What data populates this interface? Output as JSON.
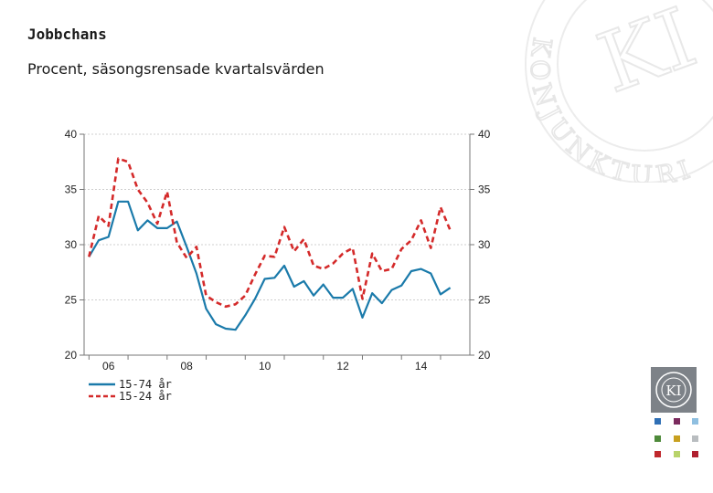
{
  "header": {
    "title": "Jobbchans",
    "subtitle": "Procent, säsongsrensade kvartalsvärden"
  },
  "branding": {
    "watermark_text": "KONJUNKTURINSTITUTET",
    "logo_text": "KI",
    "swatch_colors": [
      "#2f6fb5",
      "#7b2a5e",
      "#8fbfe0",
      "#4e8a3a",
      "#c8a020",
      "#b9bdc0",
      "#c0282d",
      "#b8d36a",
      "#b02030"
    ]
  },
  "chart_data": {
    "type": "line",
    "title": "Jobbchans",
    "subtitle": "Procent, säsongsrensade kvartalsvärden",
    "ylim": [
      20,
      40
    ],
    "yticks_left": [
      "20",
      "25",
      "30",
      "35",
      "40"
    ],
    "yticks_right": [
      "20",
      "25",
      "30",
      "35",
      "40"
    ],
    "xticks": [
      {
        "label": "06",
        "x": 2006.5
      },
      {
        "label": "08",
        "x": 2008.5
      },
      {
        "label": "10",
        "x": 2010.5
      },
      {
        "label": "12",
        "x": 2012.5
      },
      {
        "label": "14",
        "x": 2014.5
      }
    ],
    "xlim": [
      2005.875,
      2015.75
    ],
    "grid": true,
    "legend_position": "bottom-left",
    "x": [
      2006.0,
      2006.25,
      2006.5,
      2006.75,
      2007.0,
      2007.25,
      2007.5,
      2007.75,
      2008.0,
      2008.25,
      2008.5,
      2008.75,
      2009.0,
      2009.25,
      2009.5,
      2009.75,
      2010.0,
      2010.25,
      2010.5,
      2010.75,
      2011.0,
      2011.25,
      2011.5,
      2011.75,
      2012.0,
      2012.25,
      2012.5,
      2012.75,
      2013.0,
      2013.25,
      2013.5,
      2013.75,
      2014.0,
      2014.25,
      2014.5,
      2014.75,
      2015.0,
      2015.25
    ],
    "series": [
      {
        "name": "15-74 år",
        "color": "#1a7aaa",
        "dash": "solid",
        "values": [
          28.9,
          30.4,
          30.7,
          33.9,
          33.9,
          31.3,
          32.2,
          31.5,
          31.5,
          32.1,
          29.8,
          27.4,
          24.2,
          22.8,
          22.4,
          22.3,
          23.6,
          25.1,
          26.9,
          27.0,
          28.1,
          26.2,
          26.7,
          25.4,
          26.4,
          25.2,
          25.2,
          26.0,
          23.4,
          25.6,
          24.7,
          25.9,
          26.3,
          27.6,
          27.8,
          27.4,
          25.5,
          26.1
        ]
      },
      {
        "name": "15-24 år",
        "color": "#d42a2a",
        "dash": "dashed",
        "values": [
          28.9,
          32.6,
          31.7,
          37.8,
          37.5,
          35.0,
          33.8,
          31.9,
          34.8,
          30.2,
          28.8,
          29.8,
          25.4,
          24.8,
          24.4,
          24.6,
          25.4,
          27.3,
          29.0,
          28.9,
          31.6,
          29.4,
          30.5,
          28.1,
          27.8,
          28.3,
          29.2,
          29.7,
          25.1,
          29.2,
          27.6,
          27.8,
          29.6,
          30.4,
          32.2,
          29.7,
          33.4,
          31.3
        ]
      }
    ]
  }
}
